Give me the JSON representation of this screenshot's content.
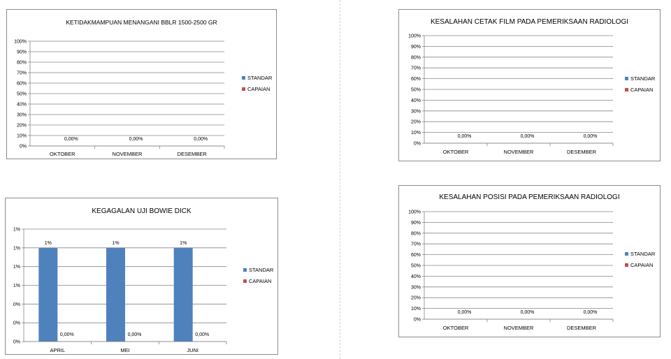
{
  "colors": {
    "standar": "#4f81bd",
    "capaian": "#c0504d",
    "grid": "#868686",
    "axis": "#868686",
    "text": "#000000"
  },
  "chart_data": [
    {
      "type": "bar",
      "title": "KETIDAKMAMPUAN MENANGANI BBLR 1500-2500 GR",
      "categories": [
        "OKTOBER",
        "NOVEMBER",
        "DESEMBER"
      ],
      "series": [
        {
          "name": "STANDAR",
          "values": [
            0,
            0,
            0
          ],
          "labels": [
            "",
            "",
            ""
          ]
        },
        {
          "name": "CAPAIAN",
          "values": [
            0,
            0,
            0
          ],
          "labels": [
            "0,00%",
            "0,00%",
            "0,00%"
          ]
        }
      ],
      "ylim": [
        0,
        100
      ],
      "yticks": [
        "0%",
        "10%",
        "20%",
        "30%",
        "40%",
        "50%",
        "60%",
        "70%",
        "80%",
        "90%",
        "100%"
      ],
      "grid": true,
      "legend": "right"
    },
    {
      "type": "bar",
      "title": "KESALAHAN CETAK FILM PADA PEMERIKSAAN RADIOLOGI",
      "categories": [
        "OKTOBER",
        "NOVEMBER",
        "DESEMBER"
      ],
      "series": [
        {
          "name": "STANDAR",
          "values": [
            0,
            0,
            0
          ],
          "labels": [
            "",
            "",
            ""
          ]
        },
        {
          "name": "CAPAIAN",
          "values": [
            0,
            0,
            0
          ],
          "labels": [
            "0,00%",
            "0,00%",
            "0,00%"
          ]
        }
      ],
      "ylim": [
        0,
        100
      ],
      "yticks": [
        "0%",
        "10%",
        "20%",
        "30%",
        "40%",
        "50%",
        "60%",
        "70%",
        "80%",
        "90%",
        "100%"
      ],
      "grid": true,
      "legend": "right"
    },
    {
      "type": "bar",
      "title": "KEGAGALAN UJI BOWIE DICK",
      "categories": [
        "APRIL",
        "MEI",
        "JUNI"
      ],
      "series": [
        {
          "name": "STANDAR",
          "values": [
            1,
            1,
            1
          ],
          "labels": [
            "1%",
            "1%",
            "1%"
          ]
        },
        {
          "name": "CAPAIAN",
          "values": [
            0,
            0,
            0
          ],
          "labels": [
            "0,00%",
            "0,00%",
            "0,00%"
          ]
        }
      ],
      "ylim": [
        0,
        1.2
      ],
      "yticks": [
        "0%",
        "0%",
        "0%",
        "1%",
        "1%",
        "1%",
        "1%"
      ],
      "grid": true,
      "legend": "right"
    },
    {
      "type": "bar",
      "title": "KESALAHAN POSISI PADA PEMERIKSAAN RADIOLOGI",
      "categories": [
        "OKTOBER",
        "NOVEMBER",
        "DESEMBER"
      ],
      "series": [
        {
          "name": "STANDAR",
          "values": [
            0,
            0,
            0
          ],
          "labels": [
            "",
            "",
            ""
          ]
        },
        {
          "name": "CAPAIAN",
          "values": [
            0,
            0,
            0
          ],
          "labels": [
            "0,00%",
            "0,00%",
            "0,00%"
          ]
        }
      ],
      "ylim": [
        0,
        100
      ],
      "yticks": [
        "0%",
        "10%",
        "20%",
        "30%",
        "40%",
        "50%",
        "60%",
        "70%",
        "80%",
        "90%",
        "100%"
      ],
      "grid": true,
      "legend": "right"
    }
  ]
}
